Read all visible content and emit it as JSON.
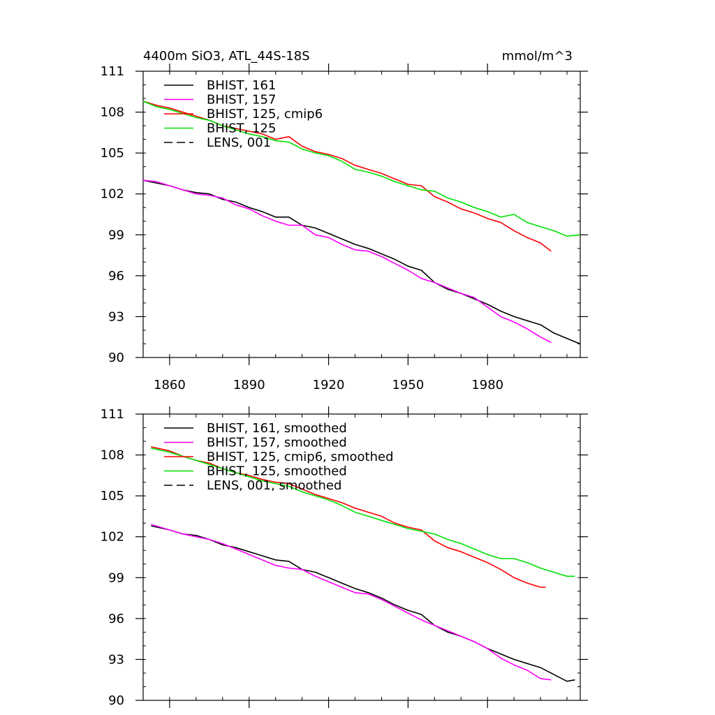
{
  "figure": {
    "title_left": "4400m SiO3, ATL_44S-18S",
    "title_right": "mmol/m^3"
  },
  "chart_data": [
    {
      "type": "line",
      "title": "4400m SiO3, ATL_44S-18S",
      "units": "mmol/m^3",
      "xlim": [
        1850,
        2015
      ],
      "ylim": [
        90,
        111
      ],
      "xticks": [
        1860,
        1890,
        1920,
        1950,
        1980
      ],
      "yticks": [
        90,
        93,
        96,
        99,
        102,
        105,
        108,
        111
      ],
      "xtick_labels_visible": true,
      "legend_position": "top-left",
      "series": [
        {
          "name": "BHIST, 161",
          "color": "#000000",
          "dash": "solid",
          "x": [
            1850,
            1855,
            1860,
            1865,
            1870,
            1875,
            1880,
            1885,
            1890,
            1895,
            1900,
            1905,
            1910,
            1915,
            1920,
            1925,
            1930,
            1935,
            1940,
            1945,
            1950,
            1955,
            1960,
            1965,
            1970,
            1975,
            1980,
            1985,
            1990,
            1995,
            2000,
            2005,
            2010,
            2015
          ],
          "y": [
            103.0,
            102.8,
            102.6,
            102.3,
            102.1,
            102.0,
            101.6,
            101.4,
            101.0,
            100.7,
            100.3,
            100.3,
            99.7,
            99.5,
            99.1,
            98.7,
            98.3,
            98.0,
            97.6,
            97.2,
            96.7,
            96.4,
            95.5,
            95.0,
            94.7,
            94.3,
            93.9,
            93.4,
            93.0,
            92.7,
            92.4,
            91.8,
            91.4,
            91.0
          ]
        },
        {
          "name": "BHIST, 157",
          "color": "#ff00ff",
          "dash": "solid",
          "x": [
            1850,
            1855,
            1860,
            1865,
            1870,
            1875,
            1880,
            1885,
            1890,
            1895,
            1900,
            1905,
            1910,
            1915,
            1920,
            1925,
            1930,
            1935,
            1940,
            1945,
            1950,
            1955,
            1960,
            1965,
            1970,
            1975,
            1980,
            1985,
            1990,
            1995,
            2000,
            2004
          ],
          "y": [
            103.0,
            102.9,
            102.6,
            102.3,
            102.0,
            101.9,
            101.7,
            101.2,
            100.9,
            100.4,
            100.0,
            99.7,
            99.7,
            99.0,
            98.8,
            98.3,
            97.9,
            97.8,
            97.4,
            96.9,
            96.4,
            95.8,
            95.5,
            95.1,
            94.7,
            94.4,
            93.7,
            93.0,
            92.6,
            92.1,
            91.5,
            91.1
          ]
        },
        {
          "name": "BHIST, 125, cmip6",
          "color": "#ff0000",
          "dash": "solid",
          "x": [
            1850,
            1855,
            1860,
            1865,
            1870,
            1875,
            1880,
            1885,
            1890,
            1895,
            1900,
            1905,
            1910,
            1915,
            1920,
            1925,
            1930,
            1935,
            1940,
            1945,
            1950,
            1955,
            1960,
            1965,
            1970,
            1975,
            1980,
            1985,
            1990,
            1995,
            2000,
            2004
          ],
          "y": [
            108.8,
            108.5,
            108.3,
            108.0,
            107.7,
            107.4,
            107.0,
            106.8,
            106.6,
            106.4,
            106.0,
            106.2,
            105.5,
            105.1,
            104.9,
            104.6,
            104.1,
            103.8,
            103.5,
            103.1,
            102.7,
            102.6,
            101.8,
            101.4,
            100.9,
            100.6,
            100.2,
            99.9,
            99.3,
            98.8,
            98.4,
            97.8
          ]
        },
        {
          "name": "BHIST, 125",
          "color": "#00e000",
          "dash": "solid",
          "x": [
            1850,
            1855,
            1860,
            1865,
            1870,
            1875,
            1880,
            1885,
            1890,
            1895,
            1900,
            1905,
            1910,
            1915,
            1920,
            1925,
            1930,
            1935,
            1940,
            1945,
            1950,
            1955,
            1960,
            1965,
            1970,
            1975,
            1980,
            1985,
            1990,
            1995,
            2000,
            2005,
            2010,
            2015
          ],
          "y": [
            108.8,
            108.4,
            108.2,
            107.9,
            107.6,
            107.4,
            107.0,
            106.7,
            106.4,
            106.2,
            105.9,
            105.8,
            105.3,
            105.0,
            104.8,
            104.4,
            103.8,
            103.6,
            103.3,
            102.9,
            102.6,
            102.3,
            102.2,
            101.7,
            101.4,
            101.0,
            100.7,
            100.3,
            100.5,
            99.9,
            99.6,
            99.3,
            98.9,
            99.0
          ]
        },
        {
          "name": "LENS, 001",
          "color": "#000000",
          "dash": "dashed",
          "x": [],
          "y": []
        }
      ]
    },
    {
      "type": "line",
      "xlim": [
        1850,
        2015
      ],
      "ylim": [
        90,
        111
      ],
      "xticks": [
        1860,
        1890,
        1920,
        1950,
        1980
      ],
      "yticks": [
        90,
        93,
        96,
        99,
        102,
        105,
        108,
        111
      ],
      "xtick_labels_visible": false,
      "legend_position": "top-left",
      "series": [
        {
          "name": "BHIST, 161, smoothed",
          "color": "#000000",
          "dash": "solid",
          "x": [
            1853,
            1860,
            1865,
            1870,
            1875,
            1880,
            1885,
            1890,
            1895,
            1900,
            1905,
            1910,
            1915,
            1920,
            1925,
            1930,
            1935,
            1940,
            1945,
            1950,
            1955,
            1960,
            1965,
            1970,
            1975,
            1980,
            1985,
            1990,
            1995,
            2000,
            2005,
            2010,
            2013
          ],
          "y": [
            102.8,
            102.5,
            102.2,
            102.1,
            101.8,
            101.4,
            101.2,
            100.9,
            100.6,
            100.3,
            100.2,
            99.6,
            99.4,
            99.0,
            98.6,
            98.2,
            97.9,
            97.5,
            97.0,
            96.6,
            96.3,
            95.5,
            95.0,
            94.7,
            94.3,
            93.8,
            93.4,
            93.0,
            92.7,
            92.4,
            91.9,
            91.4,
            91.5
          ]
        },
        {
          "name": "BHIST, 157, smoothed",
          "color": "#ff00ff",
          "dash": "solid",
          "x": [
            1853,
            1860,
            1865,
            1870,
            1875,
            1880,
            1885,
            1890,
            1895,
            1900,
            1905,
            1910,
            1915,
            1920,
            1925,
            1930,
            1935,
            1940,
            1945,
            1950,
            1955,
            1960,
            1965,
            1970,
            1975,
            1980,
            1985,
            1990,
            1995,
            2000,
            2004
          ],
          "y": [
            102.9,
            102.5,
            102.2,
            102.0,
            101.8,
            101.5,
            101.1,
            100.7,
            100.3,
            99.9,
            99.7,
            99.6,
            99.1,
            98.7,
            98.3,
            97.9,
            97.8,
            97.4,
            96.9,
            96.4,
            95.9,
            95.5,
            95.1,
            94.7,
            94.3,
            93.8,
            93.1,
            92.6,
            92.2,
            91.6,
            91.5
          ]
        },
        {
          "name": "BHIST, 125, cmip6, smoothed",
          "color": "#ff0000",
          "dash": "solid",
          "x": [
            1853,
            1860,
            1865,
            1870,
            1875,
            1880,
            1885,
            1890,
            1895,
            1900,
            1905,
            1910,
            1915,
            1920,
            1925,
            1930,
            1935,
            1940,
            1945,
            1950,
            1955,
            1960,
            1965,
            1970,
            1975,
            1980,
            1985,
            1990,
            1995,
            2000,
            2002
          ],
          "y": [
            108.6,
            108.3,
            107.9,
            107.6,
            107.4,
            107.0,
            106.7,
            106.5,
            106.2,
            106.0,
            105.9,
            105.5,
            105.1,
            104.8,
            104.5,
            104.1,
            103.8,
            103.5,
            103.0,
            102.7,
            102.5,
            101.7,
            101.2,
            100.9,
            100.5,
            100.1,
            99.6,
            99.0,
            98.6,
            98.3,
            98.3
          ]
        },
        {
          "name": "BHIST, 125, smoothed",
          "color": "#00e000",
          "dash": "solid",
          "x": [
            1853,
            1860,
            1865,
            1870,
            1875,
            1880,
            1885,
            1890,
            1895,
            1900,
            1905,
            1910,
            1915,
            1920,
            1925,
            1930,
            1935,
            1940,
            1945,
            1950,
            1955,
            1960,
            1965,
            1970,
            1975,
            1980,
            1985,
            1990,
            1995,
            2000,
            2005,
            2010,
            2013
          ],
          "y": [
            108.5,
            108.2,
            107.9,
            107.6,
            107.3,
            107.0,
            106.7,
            106.4,
            106.1,
            105.9,
            105.7,
            105.3,
            105.0,
            104.7,
            104.3,
            103.8,
            103.5,
            103.2,
            102.9,
            102.6,
            102.4,
            102.2,
            101.8,
            101.5,
            101.1,
            100.7,
            100.4,
            100.4,
            100.1,
            99.7,
            99.4,
            99.1,
            99.1
          ]
        },
        {
          "name": "LENS, 001, smoothed",
          "color": "#000000",
          "dash": "dashed",
          "x": [],
          "y": []
        }
      ]
    }
  ]
}
